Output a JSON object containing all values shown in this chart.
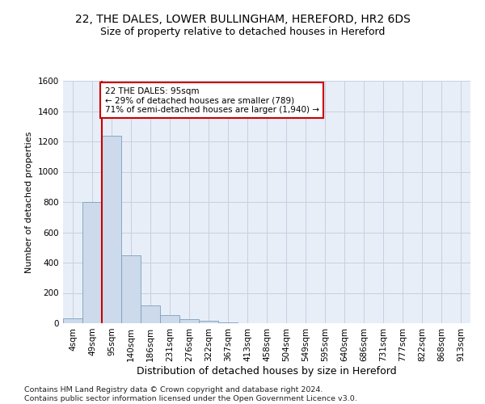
{
  "title1": "22, THE DALES, LOWER BULLINGHAM, HEREFORD, HR2 6DS",
  "title2": "Size of property relative to detached houses in Hereford",
  "xlabel": "Distribution of detached houses by size in Hereford",
  "ylabel": "Number of detached properties",
  "footnote": "Contains HM Land Registry data © Crown copyright and database right 2024.\nContains public sector information licensed under the Open Government Licence v3.0.",
  "bar_labels": [
    "4sqm",
    "49sqm",
    "95sqm",
    "140sqm",
    "186sqm",
    "231sqm",
    "276sqm",
    "322sqm",
    "367sqm",
    "413sqm",
    "458sqm",
    "504sqm",
    "549sqm",
    "595sqm",
    "640sqm",
    "686sqm",
    "731sqm",
    "777sqm",
    "822sqm",
    "868sqm",
    "913sqm"
  ],
  "bar_values": [
    30,
    800,
    1240,
    450,
    120,
    55,
    25,
    15,
    8,
    0,
    0,
    0,
    0,
    0,
    0,
    0,
    0,
    0,
    0,
    0,
    0
  ],
  "bar_color": "#ccdaeb",
  "bar_edge_color": "#7aa0c0",
  "property_line_bar_index": 2,
  "annotation_text": "22 THE DALES: 95sqm\n← 29% of detached houses are smaller (789)\n71% of semi-detached houses are larger (1,940) →",
  "annotation_box_color": "white",
  "annotation_box_edge_color": "#cc0000",
  "vline_color": "#cc0000",
  "ylim": [
    0,
    1600
  ],
  "yticks": [
    0,
    200,
    400,
    600,
    800,
    1000,
    1200,
    1400,
    1600
  ],
  "grid_color": "#c8cfe0",
  "background_color": "#e8eef8",
  "title1_fontsize": 10,
  "title2_fontsize": 9,
  "xlabel_fontsize": 9,
  "ylabel_fontsize": 8,
  "tick_fontsize": 7.5,
  "annotation_fontsize": 7.5,
  "footnote_fontsize": 6.8
}
